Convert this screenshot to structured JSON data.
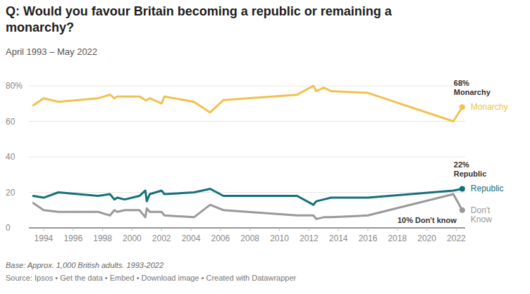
{
  "chart_data": {
    "type": "line",
    "title": "Q: Would you favour Britain becoming a republic or remaining a monarchy?",
    "subtitle": "April 1993 – May 2022",
    "notes": "Base: Approx. 1,000 British adults. 1993-2022",
    "source": "Source: Ipsos • Get the data • Embed • Download image • Created with Datawrapper",
    "x": [
      1993.3,
      1994.0,
      1995.0,
      1997.7,
      1998.5,
      1998.8,
      1999.0,
      1999.5,
      2000.5,
      2000.9,
      2001.0,
      2001.2,
      2002.0,
      2002.2,
      2004.2,
      2005.3,
      2006.2,
      2011.2,
      2012.3,
      2012.5,
      2013.0,
      2013.5,
      2016.0,
      2021.8,
      2022.4
    ],
    "series": [
      {
        "name": "Monarchy",
        "color": "#f2c14e",
        "marker": "last",
        "annotation": [
          "68%",
          "Monarchy"
        ],
        "values": [
          69,
          73,
          71,
          73,
          75,
          73,
          74,
          74,
          74,
          72,
          72,
          73,
          70,
          74,
          71,
          65,
          72,
          75,
          80,
          77,
          79,
          77,
          76,
          60,
          68
        ]
      },
      {
        "name": "Republic",
        "color": "#15707a",
        "marker": "last",
        "annotation": [
          "22%",
          "Republic"
        ],
        "values": [
          18,
          17,
          20,
          18,
          19,
          16,
          17,
          16,
          18,
          21,
          15,
          19,
          21,
          19,
          20,
          22,
          18,
          18,
          13,
          15,
          16,
          17,
          17,
          21,
          22
        ]
      },
      {
        "name": "Don't Know",
        "color": "#999999",
        "marker": "last",
        "annotation": [
          "10% Don't know"
        ],
        "values": [
          14,
          10,
          9,
          9,
          7,
          10,
          9,
          10,
          10,
          6,
          11,
          9,
          9,
          7,
          6,
          13,
          10,
          7,
          7,
          5,
          6,
          6,
          7,
          19,
          10
        ]
      }
    ],
    "xlim": [
      1993.0,
      2022.6
    ],
    "xticks": [
      1994,
      1996,
      1998,
      2000,
      2002,
      2004,
      2006,
      2008,
      2010,
      2012,
      2014,
      2016,
      2018,
      2020,
      2022
    ],
    "ylim": [
      0,
      80
    ],
    "yticks": [
      0,
      20,
      40,
      60,
      {
        "value": 80,
        "label": "80%"
      }
    ],
    "grid": true
  }
}
